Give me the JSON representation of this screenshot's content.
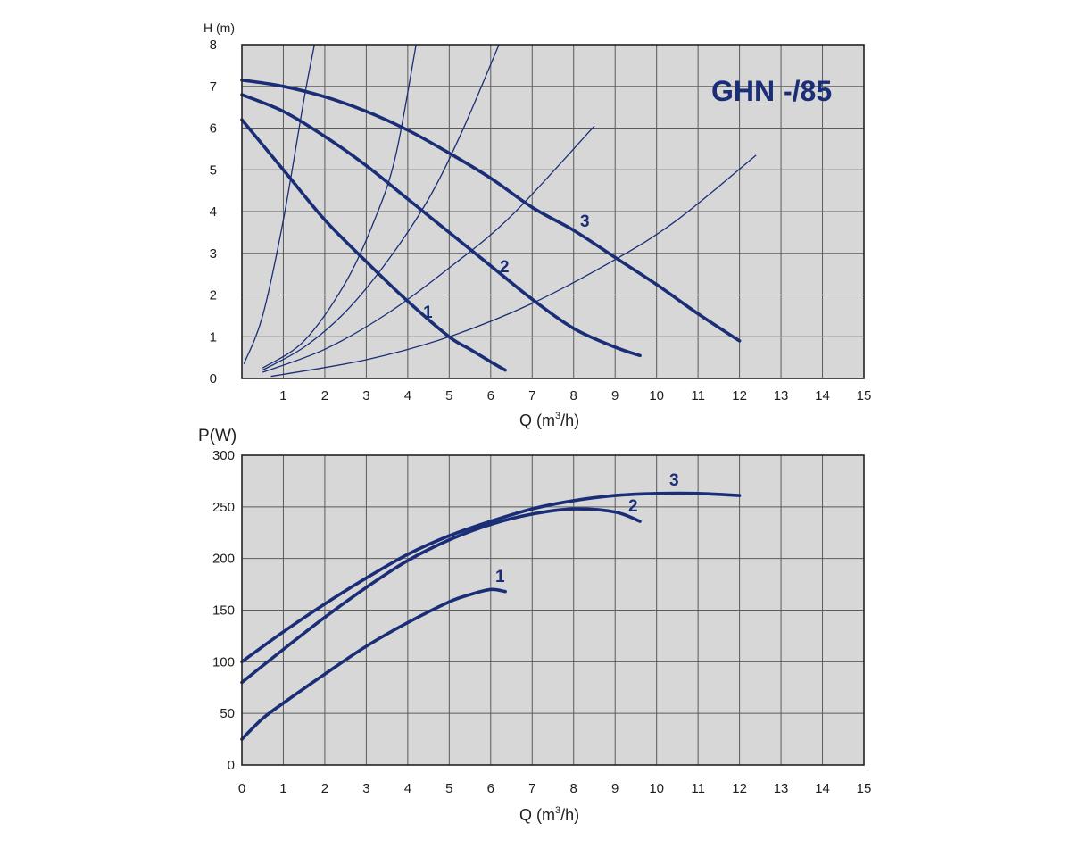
{
  "colors": {
    "curve": "#1a2e78",
    "plot_bg": "#d7d7d7",
    "grid": "#5a5a5a",
    "frame": "#222222"
  },
  "chart_data": [
    {
      "type": "line",
      "title": "GHN -/85",
      "xlabel": "Q (m³/h)",
      "xlabel_main": "Q (m",
      "xlabel_sup": "3",
      "xlabel_tail": "/h)",
      "ylabel": "H (m)",
      "xlim": [
        0,
        15
      ],
      "ylim": [
        0,
        8
      ],
      "xticks": [
        "1",
        "2",
        "3",
        "4",
        "5",
        "6",
        "7",
        "8",
        "9",
        "10",
        "11",
        "12",
        "13",
        "14",
        "15"
      ],
      "yticks": [
        "0",
        "1",
        "2",
        "3",
        "4",
        "5",
        "6",
        "7",
        "8"
      ],
      "series": [
        {
          "name": "1",
          "x": [
            0,
            1,
            2,
            3,
            4,
            5,
            5.5,
            6,
            6.35
          ],
          "y": [
            6.2,
            5.0,
            3.8,
            2.8,
            1.85,
            1.0,
            0.7,
            0.4,
            0.2
          ]
        },
        {
          "name": "2",
          "x": [
            0,
            1,
            2,
            3,
            4,
            5,
            6,
            7,
            8,
            9,
            9.6
          ],
          "y": [
            6.8,
            6.4,
            5.8,
            5.1,
            4.3,
            3.5,
            2.7,
            1.9,
            1.2,
            0.75,
            0.55
          ]
        },
        {
          "name": "3",
          "x": [
            0,
            1,
            2,
            3,
            4,
            5,
            6,
            7,
            8,
            9,
            10,
            11,
            12
          ],
          "y": [
            7.15,
            7.0,
            6.75,
            6.4,
            5.95,
            5.4,
            4.8,
            4.1,
            3.55,
            2.9,
            2.25,
            1.55,
            0.9
          ]
        }
      ],
      "system_curves": [
        {
          "x": [
            0.05,
            0.5,
            1.0,
            1.5,
            1.75
          ],
          "y": [
            0.35,
            1.5,
            3.8,
            6.7,
            8.0
          ]
        },
        {
          "x": [
            0.5,
            1.5,
            2.5,
            3.2,
            3.7,
            4.2
          ],
          "y": [
            0.25,
            0.9,
            2.3,
            3.8,
            5.3,
            8.0
          ]
        },
        {
          "x": [
            0.5,
            1.5,
            2.5,
            3.5,
            4.5,
            5.3,
            6.2
          ],
          "y": [
            0.2,
            0.75,
            1.6,
            2.8,
            4.3,
            5.9,
            8.0
          ]
        },
        {
          "x": [
            0.5,
            2,
            3.5,
            5,
            6.5,
            8.5
          ],
          "y": [
            0.15,
            0.7,
            1.55,
            2.65,
            3.9,
            6.05
          ]
        },
        {
          "x": [
            0.7,
            3,
            5,
            7,
            9,
            10.5,
            12.4
          ],
          "y": [
            0.05,
            0.45,
            1.0,
            1.8,
            2.85,
            3.8,
            5.35
          ]
        }
      ]
    },
    {
      "type": "line",
      "xlabel": "Q (m³/h)",
      "xlabel_main": "Q (m",
      "xlabel_sup": "3",
      "xlabel_tail": "/h)",
      "ylabel": "P(W)",
      "xlim": [
        0,
        15
      ],
      "ylim": [
        0,
        300
      ],
      "xticks": [
        "0",
        "1",
        "2",
        "3",
        "4",
        "5",
        "6",
        "7",
        "8",
        "9",
        "10",
        "11",
        "12",
        "13",
        "14",
        "15"
      ],
      "yticks": [
        "0",
        "50",
        "100",
        "150",
        "200",
        "250",
        "300"
      ],
      "series": [
        {
          "name": "1",
          "x": [
            0,
            0.5,
            1,
            2,
            3,
            4,
            5,
            5.5,
            6,
            6.35
          ],
          "y": [
            25,
            45,
            60,
            88,
            115,
            138,
            158,
            165,
            170,
            168
          ]
        },
        {
          "name": "2",
          "x": [
            0,
            1,
            2,
            3,
            4,
            5,
            6,
            7,
            8,
            9,
            9.6
          ],
          "y": [
            80,
            112,
            143,
            172,
            198,
            218,
            233,
            243,
            248,
            245,
            236
          ]
        },
        {
          "name": "3",
          "x": [
            0,
            1,
            2,
            3,
            4,
            5,
            6,
            7,
            8,
            9,
            10,
            11,
            12
          ],
          "y": [
            100,
            129,
            156,
            181,
            204,
            222,
            236,
            248,
            256,
            261,
            263,
            263,
            261
          ]
        }
      ]
    }
  ]
}
